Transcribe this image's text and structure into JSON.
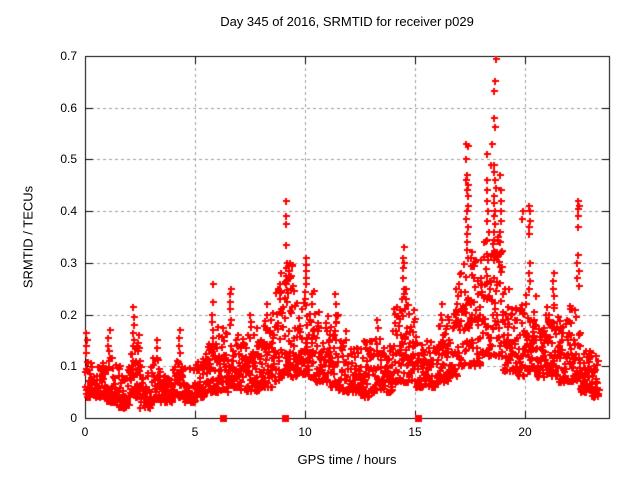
{
  "window": {
    "background": "#ffffff",
    "text_color": "#000000"
  },
  "chart_data": {
    "type": "scatter",
    "title": "Day 345 of 2016, SRMTID for receiver p029",
    "xlabel": "GPS time / hours",
    "ylabel": "SRMTID / TECUs",
    "xlim": [
      0,
      23.818
    ],
    "ylim": [
      0,
      0.7
    ],
    "xticks": [
      0,
      5,
      10,
      15,
      20
    ],
    "xtick_labels": [
      "0",
      "5",
      "10",
      "15",
      "20"
    ],
    "yticks": [
      0,
      0.1,
      0.2,
      0.3,
      0.4,
      0.5,
      0.6,
      0.7
    ],
    "ytick_labels": [
      "0",
      "0.1",
      "0.2",
      "0.3",
      "0.4",
      "0.5",
      "0.6",
      "0.7"
    ],
    "grid": true,
    "legend": "none",
    "marker": "plus",
    "marker_size": 7,
    "colors": {
      "marker": "#ff0000",
      "grid": "#9e9e9e",
      "border": "#000000"
    },
    "seed": 345,
    "band_bins": [
      [
        0.0,
        0.5,
        0.04,
        0.13,
        45
      ],
      [
        0.5,
        1.0,
        0.04,
        0.11,
        40
      ],
      [
        1.0,
        1.5,
        0.03,
        0.12,
        40
      ],
      [
        1.5,
        2.0,
        0.02,
        0.1,
        40
      ],
      [
        2.0,
        2.5,
        0.04,
        0.14,
        45
      ],
      [
        2.5,
        3.0,
        0.02,
        0.1,
        40
      ],
      [
        3.0,
        3.5,
        0.03,
        0.12,
        40
      ],
      [
        3.5,
        4.0,
        0.03,
        0.1,
        40
      ],
      [
        4.0,
        4.5,
        0.04,
        0.12,
        42
      ],
      [
        4.5,
        5.0,
        0.03,
        0.1,
        40
      ],
      [
        5.0,
        5.5,
        0.04,
        0.12,
        40
      ],
      [
        5.5,
        6.0,
        0.05,
        0.15,
        42
      ],
      [
        6.0,
        6.5,
        0.05,
        0.18,
        42
      ],
      [
        6.5,
        7.0,
        0.06,
        0.17,
        42
      ],
      [
        7.0,
        7.5,
        0.05,
        0.16,
        40
      ],
      [
        7.5,
        8.0,
        0.05,
        0.19,
        42
      ],
      [
        8.0,
        8.5,
        0.06,
        0.2,
        42
      ],
      [
        8.5,
        9.0,
        0.07,
        0.25,
        45
      ],
      [
        9.0,
        9.5,
        0.08,
        0.3,
        50
      ],
      [
        9.5,
        10.0,
        0.08,
        0.23,
        45
      ],
      [
        10.0,
        10.5,
        0.08,
        0.25,
        45
      ],
      [
        10.5,
        11.0,
        0.07,
        0.21,
        42
      ],
      [
        11.0,
        11.5,
        0.06,
        0.2,
        42
      ],
      [
        11.5,
        12.0,
        0.05,
        0.17,
        40
      ],
      [
        12.0,
        12.5,
        0.05,
        0.14,
        40
      ],
      [
        12.5,
        13.0,
        0.04,
        0.15,
        40
      ],
      [
        13.0,
        13.5,
        0.05,
        0.16,
        40
      ],
      [
        13.5,
        14.0,
        0.05,
        0.14,
        40
      ],
      [
        14.0,
        14.5,
        0.07,
        0.22,
        45
      ],
      [
        14.5,
        15.0,
        0.07,
        0.22,
        45
      ],
      [
        15.0,
        15.5,
        0.06,
        0.16,
        40
      ],
      [
        15.5,
        16.0,
        0.06,
        0.15,
        40
      ],
      [
        16.0,
        16.5,
        0.07,
        0.18,
        42
      ],
      [
        16.5,
        17.0,
        0.08,
        0.21,
        42
      ],
      [
        17.0,
        17.5,
        0.1,
        0.3,
        45
      ],
      [
        17.5,
        18.0,
        0.1,
        0.33,
        45
      ],
      [
        18.0,
        18.5,
        0.12,
        0.35,
        45
      ],
      [
        18.5,
        19.0,
        0.12,
        0.35,
        48
      ],
      [
        19.0,
        19.5,
        0.09,
        0.25,
        45
      ],
      [
        19.5,
        20.0,
        0.08,
        0.22,
        42
      ],
      [
        20.0,
        20.5,
        0.09,
        0.24,
        45
      ],
      [
        20.5,
        21.0,
        0.08,
        0.2,
        42
      ],
      [
        21.0,
        21.5,
        0.08,
        0.22,
        45
      ],
      [
        21.5,
        22.0,
        0.07,
        0.19,
        42
      ],
      [
        22.0,
        22.5,
        0.07,
        0.22,
        45
      ],
      [
        22.5,
        23.0,
        0.05,
        0.14,
        50
      ],
      [
        23.0,
        23.35,
        0.04,
        0.12,
        30
      ]
    ],
    "spike_streaks": [
      {
        "x": 0.05,
        "ys": [
          0.165,
          0.15,
          0.14,
          0.125
        ]
      },
      {
        "x": 1.1,
        "ys": [
          0.17,
          0.155,
          0.14,
          0.13
        ]
      },
      {
        "x": 2.2,
        "ys": [
          0.215,
          0.195,
          0.18,
          0.165,
          0.15,
          0.14
        ]
      },
      {
        "x": 2.4,
        "ys": [
          0.16,
          0.145,
          0.13
        ]
      },
      {
        "x": 3.3,
        "ys": [
          0.15,
          0.135
        ]
      },
      {
        "x": 4.3,
        "ys": [
          0.17,
          0.155,
          0.14,
          0.125
        ]
      },
      {
        "x": 5.8,
        "ys": [
          0.26,
          0.225,
          0.2,
          0.185,
          0.17,
          0.155
        ]
      },
      {
        "x": 6.6,
        "ys": [
          0.25,
          0.24,
          0.225,
          0.21,
          0.19,
          0.18
        ]
      },
      {
        "x": 7.5,
        "ys": [
          0.2,
          0.185
        ]
      },
      {
        "x": 8.3,
        "ys": [
          0.22,
          0.2
        ]
      },
      {
        "x": 8.9,
        "ys": [
          0.28,
          0.26,
          0.245
        ]
      },
      {
        "x": 9.15,
        "ys": [
          0.42,
          0.39,
          0.375,
          0.335,
          0.3,
          0.29,
          0.275,
          0.26
        ]
      },
      {
        "x": 9.3,
        "ys": [
          0.3,
          0.285,
          0.27
        ]
      },
      {
        "x": 10.05,
        "ys": [
          0.31,
          0.295,
          0.285,
          0.27,
          0.26
        ]
      },
      {
        "x": 10.35,
        "ys": [
          0.24,
          0.22
        ]
      },
      {
        "x": 11.4,
        "ys": [
          0.24,
          0.22,
          0.2
        ]
      },
      {
        "x": 13.3,
        "ys": [
          0.19,
          0.175
        ]
      },
      {
        "x": 14.45,
        "ys": [
          0.33,
          0.31,
          0.3,
          0.29,
          0.27,
          0.25,
          0.24,
          0.23
        ]
      },
      {
        "x": 14.6,
        "ys": [
          0.25,
          0.23,
          0.21
        ]
      },
      {
        "x": 16.2,
        "ys": [
          0.22,
          0.2,
          0.19
        ]
      },
      {
        "x": 16.9,
        "ys": [
          0.25,
          0.235,
          0.22
        ]
      },
      {
        "x": 17.37,
        "ys": [
          0.53,
          0.525,
          0.5,
          0.47,
          0.46,
          0.45,
          0.44,
          0.43,
          0.41,
          0.4,
          0.385,
          0.37,
          0.355,
          0.34,
          0.325,
          0.31
        ]
      },
      {
        "x": 18.3,
        "ys": [
          0.51,
          0.46,
          0.44,
          0.42,
          0.4,
          0.38,
          0.36,
          0.345
        ]
      },
      {
        "x": 18.45,
        "ys": [
          0.53,
          0.49
        ]
      },
      {
        "x": 18.62,
        "ys": [
          0.695,
          0.652,
          0.633,
          0.581,
          0.562,
          0.49,
          0.475,
          0.46,
          0.445,
          0.43,
          0.415,
          0.4,
          0.39,
          0.375,
          0.36
        ]
      },
      {
        "x": 18.88,
        "ys": [
          0.47,
          0.44,
          0.42,
          0.4,
          0.38,
          0.36,
          0.34
        ]
      },
      {
        "x": 19.9,
        "ys": [
          0.4,
          0.385
        ]
      },
      {
        "x": 20.2,
        "ys": [
          0.41,
          0.4,
          0.38,
          0.37,
          0.355,
          0.3,
          0.28,
          0.265,
          0.25
        ]
      },
      {
        "x": 21.3,
        "ys": [
          0.28,
          0.265,
          0.25,
          0.235
        ]
      },
      {
        "x": 22.4,
        "ys": [
          0.42,
          0.41,
          0.405,
          0.39,
          0.37,
          0.315,
          0.3,
          0.285,
          0.27,
          0.255
        ]
      }
    ],
    "zero_square_markers_x": [
      6.27,
      9.1,
      15.15
    ]
  }
}
